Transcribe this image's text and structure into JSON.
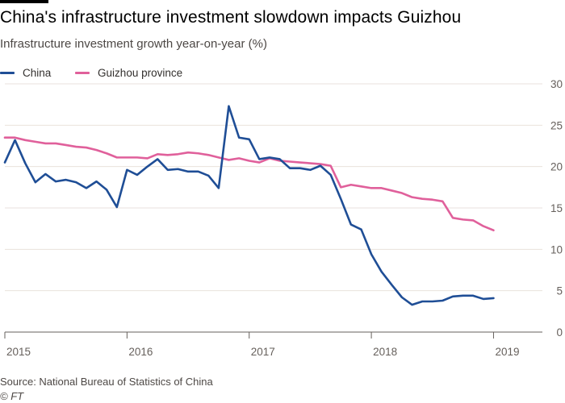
{
  "header": {
    "title": "China's infrastructure investment slowdown impacts Guizhou",
    "subtitle": "Infrastructure investment growth year-on-year (%)"
  },
  "footer": {
    "source": "Source: National Bureau of Statistics of China",
    "credit": "© FT"
  },
  "colors": {
    "china": "#1f4e96",
    "guizhou": "#e0609b",
    "grid": "#e9e2dc",
    "axis": "#66605c"
  },
  "chart_data": {
    "type": "line",
    "title": "China's infrastructure investment slowdown impacts Guizhou",
    "subtitle": "Infrastructure investment growth year-on-year (%)",
    "xlabel": "",
    "ylabel": "Infrastructure investment growth year-on-year (%)",
    "ylim": [
      0,
      30
    ],
    "xlim": [
      2015.0,
      2019.4
    ],
    "y_ticks": [
      0,
      5,
      10,
      15,
      20,
      25,
      30
    ],
    "y_tick_labels": [
      "0",
      "5",
      "10",
      "15",
      "20",
      "25",
      "30"
    ],
    "x_ticks": [
      2015,
      2016,
      2017,
      2018,
      2019
    ],
    "x_tick_labels": [
      "2015",
      "2016",
      "2017",
      "2018",
      "2019"
    ],
    "grid": true,
    "legend_position": "top-left",
    "series": [
      {
        "name": "China",
        "key": "china",
        "x": [
          2015.0,
          2015.083,
          2015.167,
          2015.25,
          2015.333,
          2015.417,
          2015.5,
          2015.583,
          2015.667,
          2015.75,
          2015.833,
          2015.917,
          2016.0,
          2016.083,
          2016.167,
          2016.25,
          2016.333,
          2016.417,
          2016.5,
          2016.583,
          2016.667,
          2016.75,
          2016.833,
          2016.917,
          2017.0,
          2017.083,
          2017.167,
          2017.25,
          2017.333,
          2017.417,
          2017.5,
          2017.583,
          2017.667,
          2017.75,
          2017.833,
          2017.917,
          2018.0,
          2018.083,
          2018.167,
          2018.25,
          2018.333,
          2018.417,
          2018.5,
          2018.583,
          2018.667,
          2018.75,
          2018.833,
          2018.917,
          2019.0,
          2019.083,
          2019.167,
          2019.25,
          2019.333,
          2019.4
        ],
        "values": [
          20.5,
          23.2,
          20.4,
          18.1,
          19.1,
          18.2,
          18.4,
          18.1,
          17.4,
          18.2,
          17.2,
          15.1,
          19.6,
          19.0,
          20.0,
          20.9,
          19.6,
          19.7,
          19.4,
          19.4,
          18.9,
          17.4,
          27.3,
          23.5,
          23.3,
          20.9,
          21.1,
          20.9,
          19.8,
          19.8,
          19.6,
          20.1,
          19.0,
          16.1,
          13.0,
          12.4,
          9.4,
          7.3,
          5.7,
          4.2,
          3.3,
          3.7,
          3.7,
          3.8,
          4.3,
          4.4,
          4.4,
          4.0,
          4.1,
          null,
          null,
          null,
          null,
          null
        ]
      },
      {
        "name": "Guizhou province",
        "key": "guizhou",
        "x": [
          2015.0,
          2015.083,
          2015.167,
          2015.25,
          2015.333,
          2015.417,
          2015.5,
          2015.583,
          2015.667,
          2015.75,
          2015.833,
          2015.917,
          2016.0,
          2016.083,
          2016.167,
          2016.25,
          2016.333,
          2016.417,
          2016.5,
          2016.583,
          2016.667,
          2016.75,
          2016.833,
          2016.917,
          2017.0,
          2017.083,
          2017.167,
          2017.25,
          2017.333,
          2017.417,
          2017.5,
          2017.583,
          2017.667,
          2017.75,
          2017.833,
          2017.917,
          2018.0,
          2018.083,
          2018.167,
          2018.25,
          2018.333,
          2018.417,
          2018.5,
          2018.583,
          2018.667,
          2018.75,
          2018.833,
          2018.917,
          2019.0,
          2019.083,
          2019.167,
          2019.25,
          2019.333,
          2019.4
        ],
        "values": [
          23.5,
          23.5,
          23.2,
          23.0,
          22.8,
          22.8,
          22.6,
          22.4,
          22.3,
          22.0,
          21.6,
          21.1,
          21.1,
          21.1,
          21.0,
          21.5,
          21.4,
          21.5,
          21.7,
          21.6,
          21.4,
          21.1,
          20.8,
          21.0,
          20.7,
          20.5,
          21.0,
          20.7,
          20.6,
          20.5,
          20.4,
          20.3,
          20.1,
          17.5,
          17.8,
          17.6,
          17.4,
          17.4,
          17.1,
          16.8,
          16.3,
          16.1,
          16.0,
          15.8,
          13.8,
          13.6,
          13.5,
          12.8,
          12.3,
          null,
          null,
          null,
          null,
          null
        ]
      }
    ]
  }
}
